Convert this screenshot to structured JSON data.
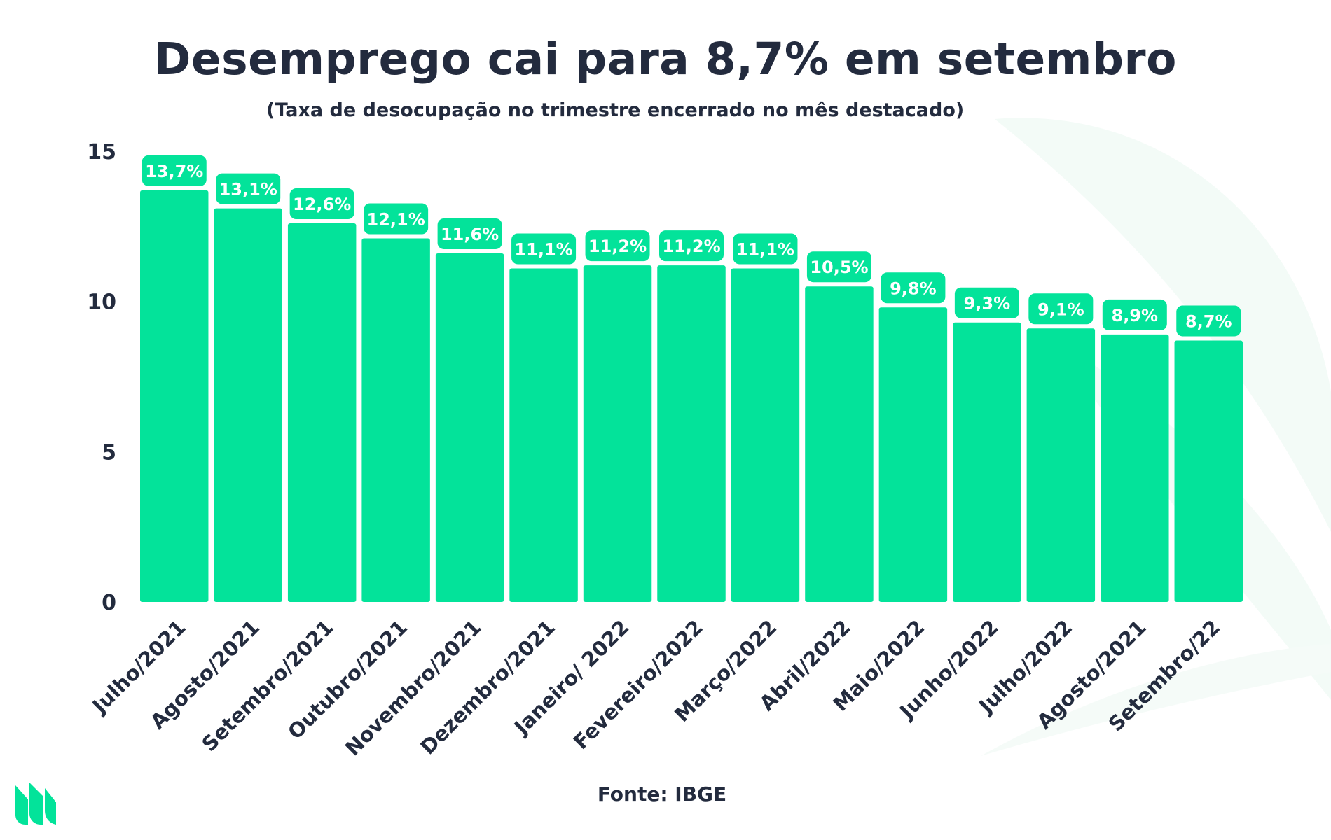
{
  "title": "Desemprego cai para 8,7% em setembro",
  "subtitle": "(Taxa de desocupação no trimestre encerrado no mês destacado)",
  "source": "Fonte: IBGE",
  "colors": {
    "bar": "#03e39a",
    "text": "#232b3e",
    "label_text": "#ffffff",
    "background_decor": "#f1fbf6"
  },
  "chart_data": {
    "type": "bar",
    "categories": [
      "Julho/2021",
      "Agosto/2021",
      "Setembro/2021",
      "Outubro/2021",
      "Novembro/2021",
      "Dezembro/2021",
      "Janeiro/ 2022",
      "Fevereiro/2022",
      "Março/2022",
      "Abril/2022",
      "Maio/2022",
      "Junho/2022",
      "Julho/2022",
      "Agosto/2021",
      "Setembro/22"
    ],
    "values": [
      13.7,
      13.1,
      12.6,
      12.1,
      11.6,
      11.1,
      11.2,
      11.2,
      11.1,
      10.5,
      9.8,
      9.3,
      9.1,
      8.9,
      8.7
    ],
    "data_labels": [
      "13,7%",
      "13,1%",
      "12,6%",
      "12,1%",
      "11,6%",
      "11,1%",
      "11,2%",
      "11,2%",
      "11,1%",
      "10,5%",
      "9,8%",
      "9,3%",
      "9,1%",
      "8,9%",
      "8,7%"
    ],
    "yticks": [
      "0",
      "5",
      "10",
      "15"
    ],
    "ylim": [
      0,
      15
    ],
    "grid": false,
    "legend": false
  }
}
